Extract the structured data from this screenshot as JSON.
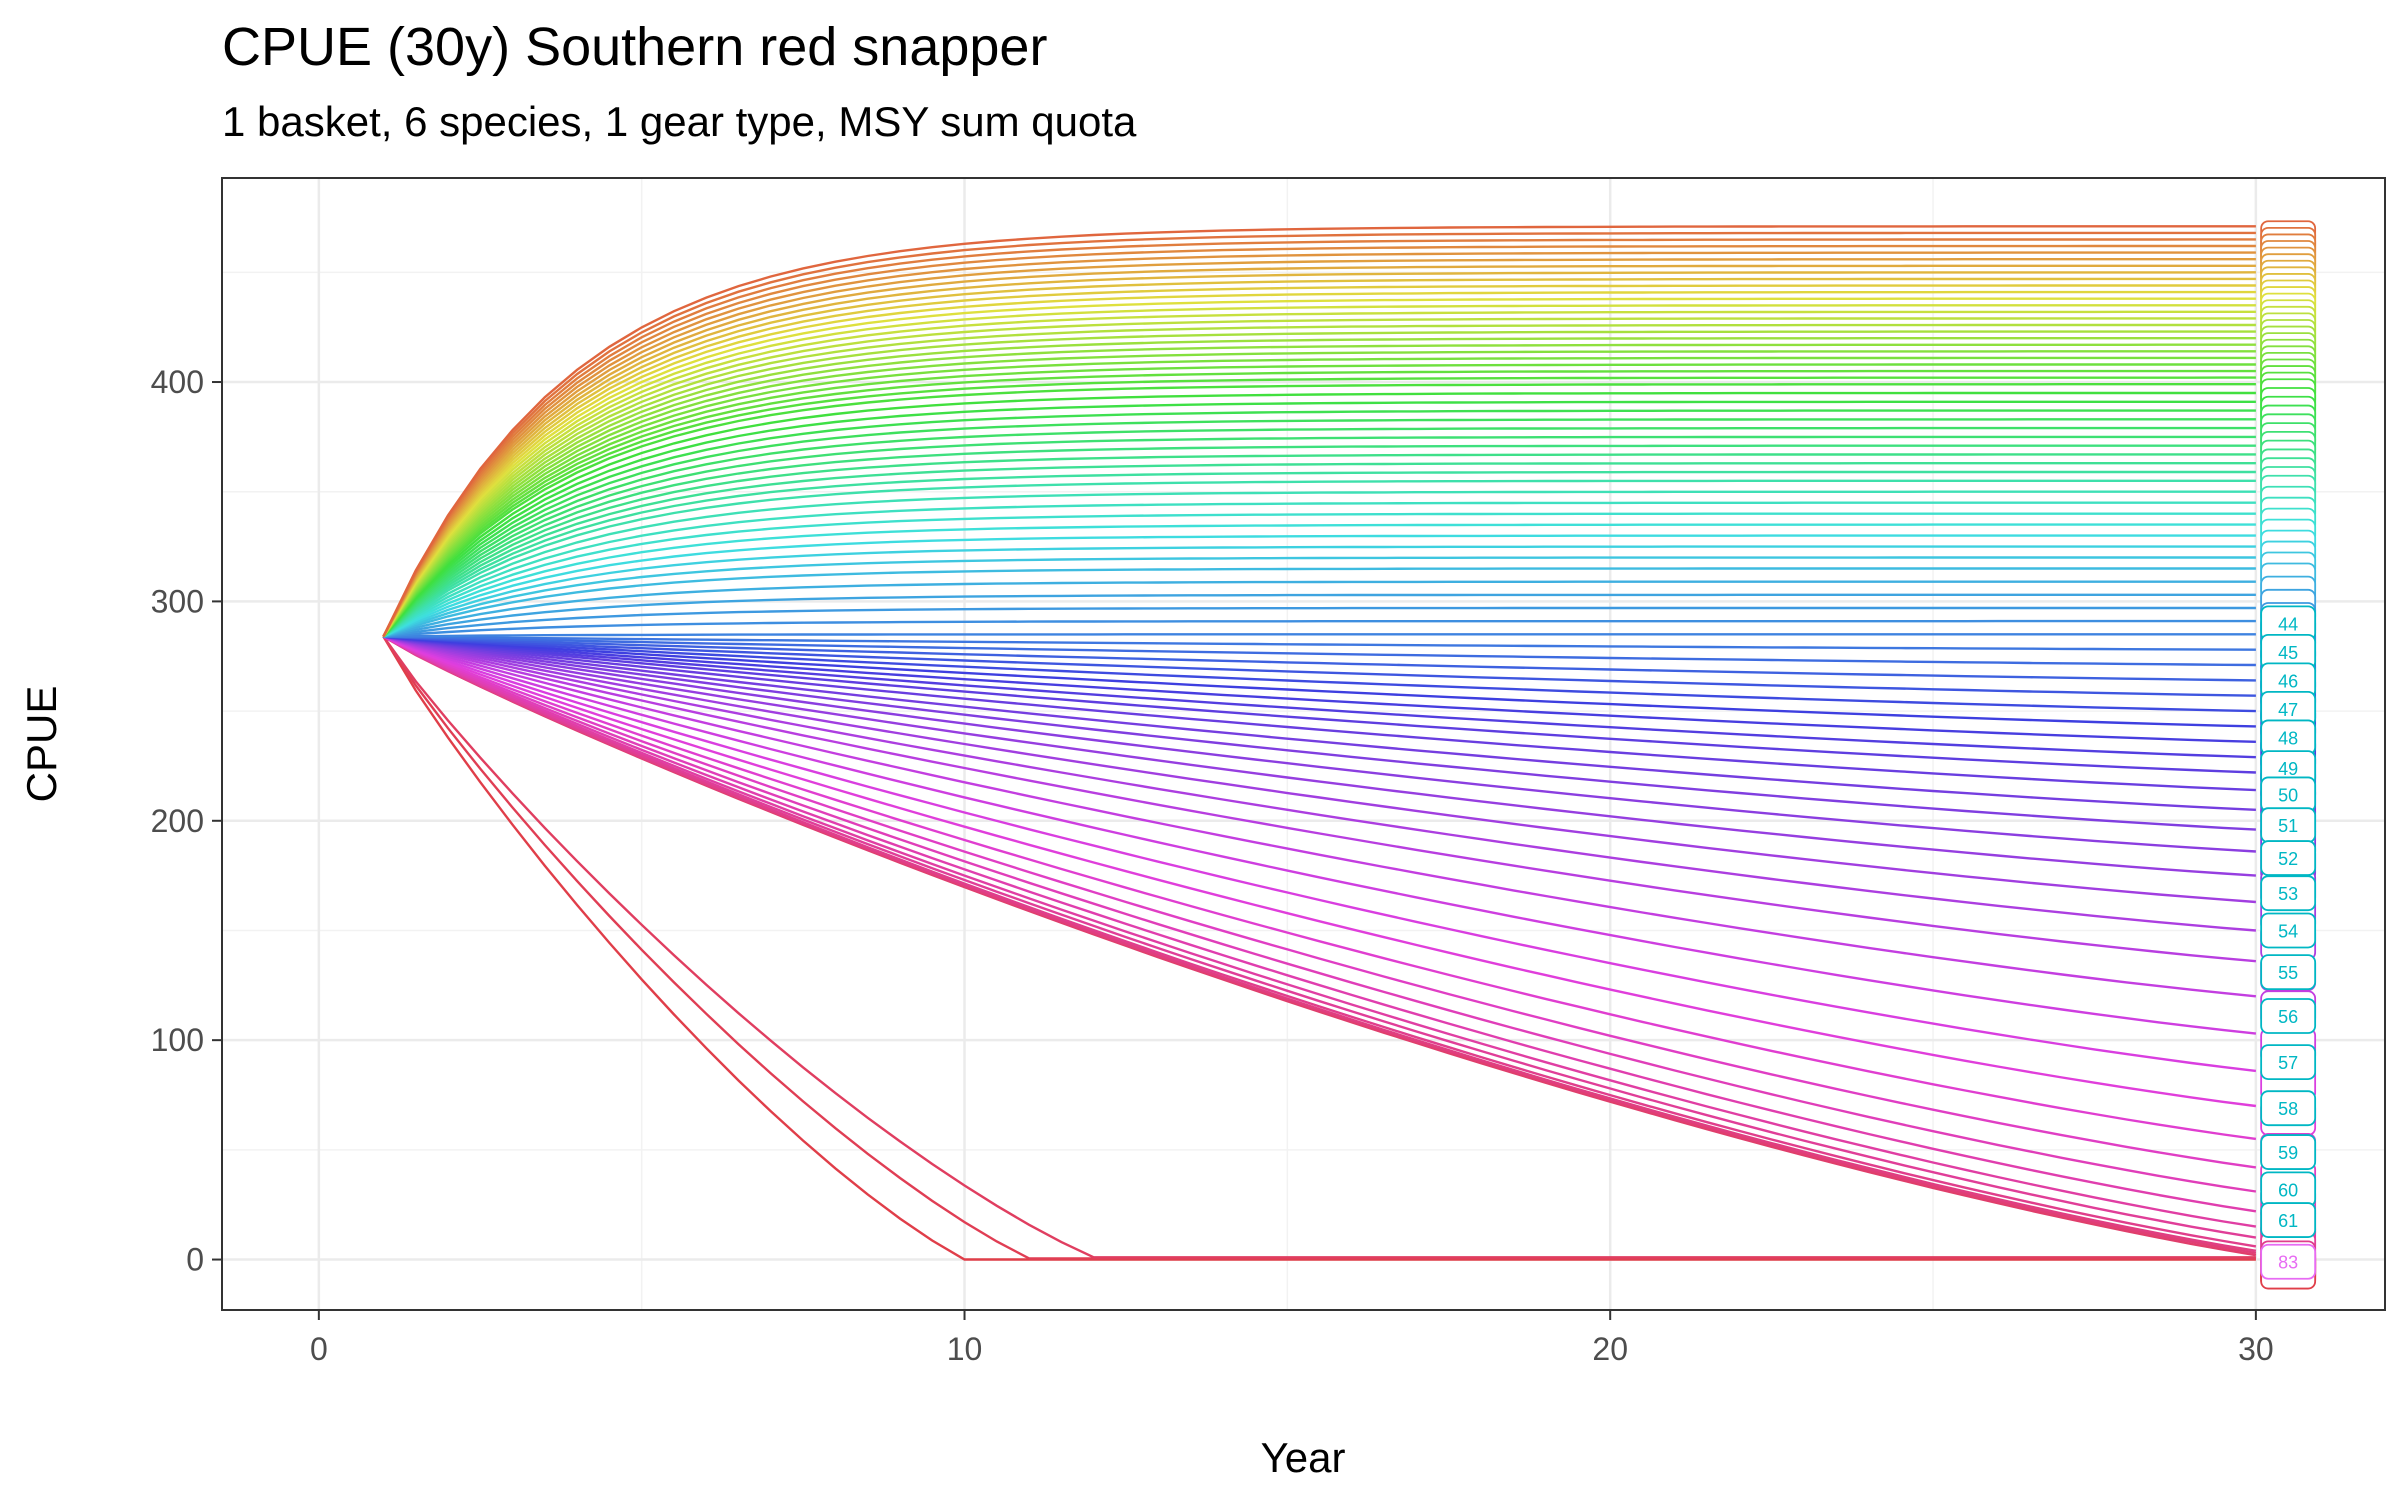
{
  "chart_data": {
    "type": "line",
    "title": "CPUE (30y) Southern red snapper",
    "subtitle": "1 basket, 6 species, 1 gear type, MSY sum quota",
    "xlabel": "Year",
    "ylabel": "CPUE",
    "xlim": [
      -1.5,
      32
    ],
    "ylim": [
      -23,
      493
    ],
    "x_ticks": [
      0,
      10,
      20,
      30
    ],
    "y_ticks": [
      0,
      100,
      200,
      300,
      400
    ],
    "grid": true,
    "legend": "none",
    "series_count": 83,
    "x": [
      1,
      30
    ],
    "start_value": 284,
    "final_values_top_to_bottom": [
      471,
      468,
      465,
      462,
      459,
      456,
      453,
      450,
      447,
      444,
      441,
      438,
      435,
      432,
      429,
      426,
      423,
      420,
      417,
      414,
      411,
      408,
      405,
      402,
      399,
      395,
      391,
      387,
      383,
      379,
      375,
      371,
      367,
      363,
      359,
      355,
      350,
      345,
      340,
      335,
      330,
      325,
      320,
      315,
      309,
      303,
      297,
      291,
      285,
      278,
      271,
      264,
      257,
      250,
      243,
      236,
      229,
      222,
      214,
      205,
      196,
      186,
      175,
      163,
      150,
      136,
      120,
      103,
      86,
      70,
      55,
      42,
      31,
      22,
      15,
      10,
      6,
      4,
      3,
      2,
      1,
      0.5,
      0
    ],
    "end_labels": [
      {
        "text": "44",
        "y": 290
      },
      {
        "text": "45",
        "y": 277
      },
      {
        "text": "46",
        "y": 264
      },
      {
        "text": "47",
        "y": 251
      },
      {
        "text": "48",
        "y": 238
      },
      {
        "text": "49",
        "y": 224
      },
      {
        "text": "50",
        "y": 212
      },
      {
        "text": "51",
        "y": 198
      },
      {
        "text": "52",
        "y": 183
      },
      {
        "text": "53",
        "y": 167
      },
      {
        "text": "54",
        "y": 150
      },
      {
        "text": "55",
        "y": 131
      },
      {
        "text": "56",
        "y": 111
      },
      {
        "text": "57",
        "y": 90
      },
      {
        "text": "58",
        "y": 69
      },
      {
        "text": "59",
        "y": 49
      },
      {
        "text": "60",
        "y": 32
      },
      {
        "text": "61",
        "y": 18
      },
      {
        "text": "83",
        "y": -1
      }
    ]
  }
}
